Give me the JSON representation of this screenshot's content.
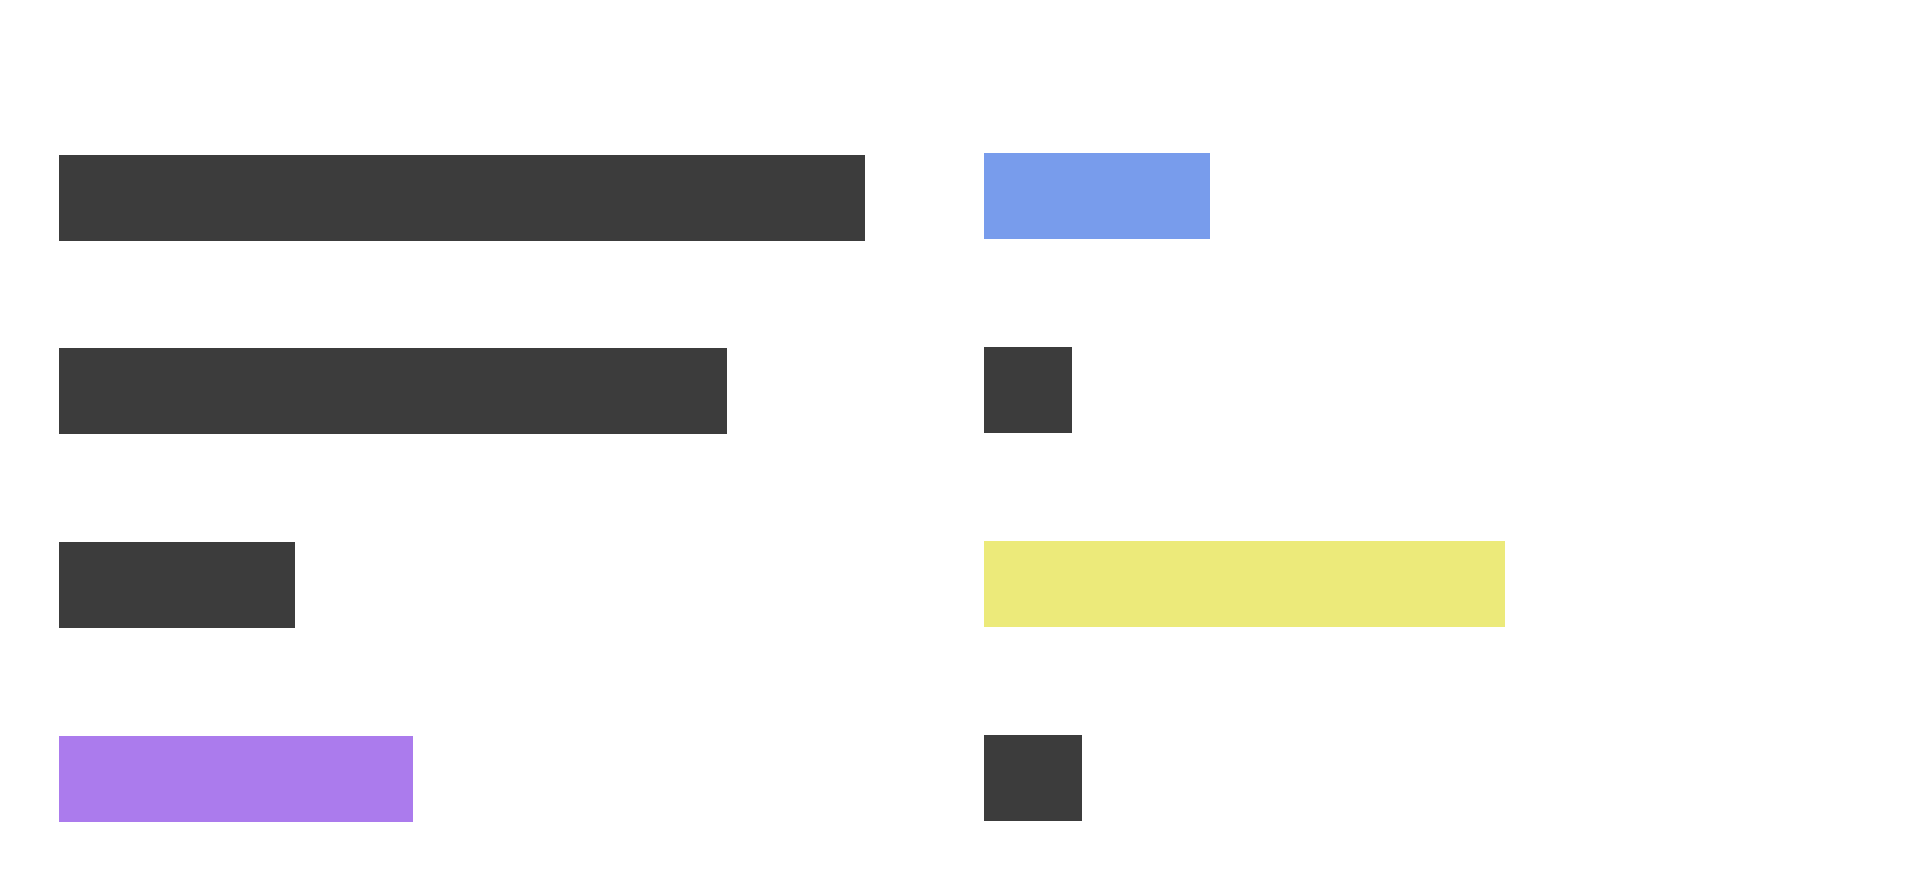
{
  "chart_data": [
    {
      "type": "bar",
      "orientation": "horizontal",
      "series": [
        {
          "values": [
            0.82,
            0.68,
            0.24,
            0.36
          ],
          "colors": [
            "#3c3c3c",
            "#3c3c3c",
            "#3c3c3c",
            "#ab7bed"
          ]
        }
      ]
    },
    {
      "type": "bar",
      "orientation": "horizontal",
      "series": [
        {
          "values": [
            0.23,
            0.09,
            0.53,
            0.1
          ],
          "colors": [
            "#789cec",
            "#3c3c3c",
            "#ecea7a",
            "#3c3c3c"
          ]
        }
      ]
    }
  ]
}
